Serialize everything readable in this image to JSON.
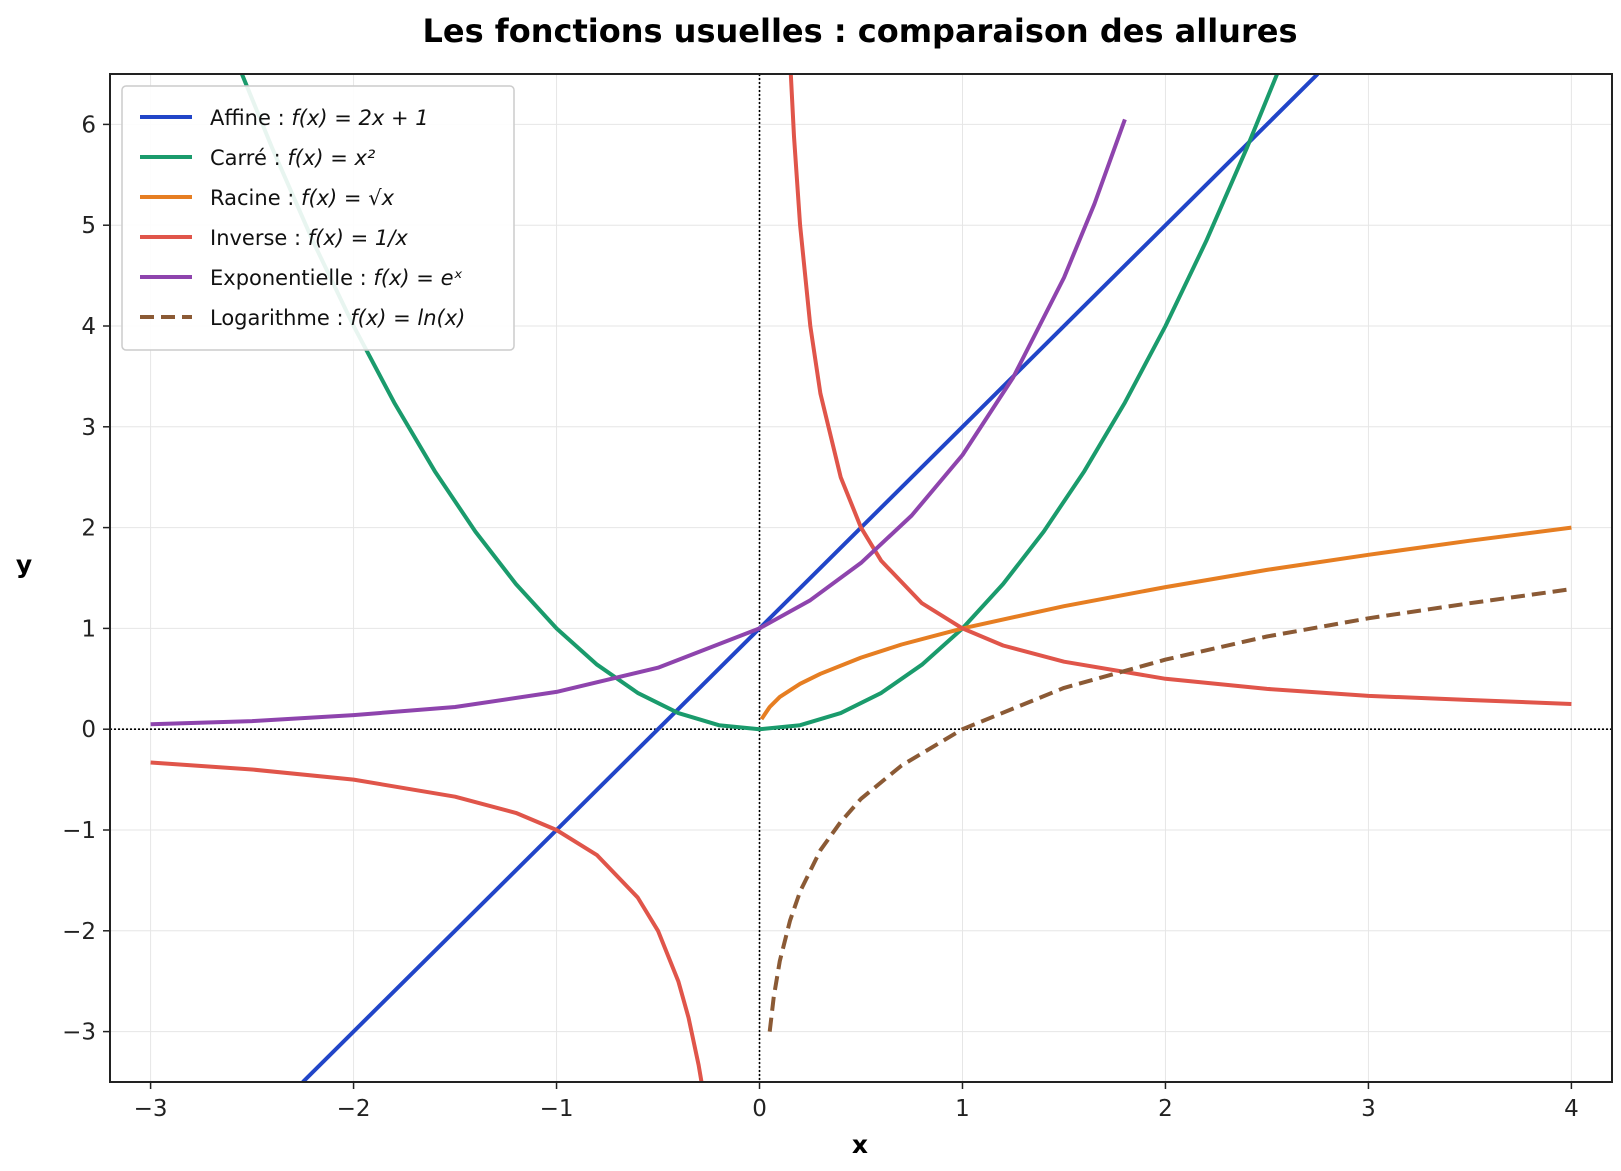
{
  "chart_data": {
    "type": "line",
    "title": "Les fonctions usuelles : comparaison des allures",
    "xlabel": "x",
    "ylabel": "y",
    "xlim": [
      -3.2,
      4.2
    ],
    "ylim": [
      -3.5,
      6.5
    ],
    "xticks": [
      "−3",
      "−2",
      "−1",
      "0",
      "1",
      "2",
      "3",
      "4"
    ],
    "yticks": [
      "−3",
      "−2",
      "−1",
      "0",
      "1",
      "2",
      "3",
      "4",
      "5",
      "6"
    ],
    "grid": true,
    "legend_position": "top-left",
    "series": [
      {
        "name": "Affine : f(x) = 2x + 1",
        "label_text": "Affine : ",
        "formula": "f(x) = 2x + 1",
        "color": "#2145c8",
        "dash": "solid",
        "x": [
          -2.25,
          2.75
        ],
        "y": [
          -3.5,
          6.5
        ]
      },
      {
        "name": "Carré : f(x) = x²",
        "label_text": "Carré : ",
        "formula": "f(x) = x²",
        "color": "#1a9b6c",
        "dash": "solid",
        "x": [
          -2.55,
          -2.4,
          -2.2,
          -2.0,
          -1.8,
          -1.6,
          -1.4,
          -1.2,
          -1.0,
          -0.8,
          -0.6,
          -0.4,
          -0.2,
          0.0,
          0.2,
          0.4,
          0.6,
          0.8,
          1.0,
          1.2,
          1.4,
          1.6,
          1.8,
          2.0,
          2.2,
          2.4,
          2.55
        ],
        "y": [
          6.5,
          5.76,
          4.84,
          4.0,
          3.24,
          2.56,
          1.96,
          1.44,
          1.0,
          0.64,
          0.36,
          0.16,
          0.04,
          0.0,
          0.04,
          0.16,
          0.36,
          0.64,
          1.0,
          1.44,
          1.96,
          2.56,
          3.24,
          4.0,
          4.84,
          5.76,
          6.5
        ]
      },
      {
        "name": "Racine : f(x) = √x",
        "label_text": "Racine : ",
        "formula": "f(x) = √x",
        "color": "#e67e22",
        "dash": "solid",
        "x": [
          0.01,
          0.05,
          0.1,
          0.2,
          0.3,
          0.5,
          0.7,
          1.0,
          1.5,
          2.0,
          2.5,
          3.0,
          3.5,
          4.0
        ],
        "y": [
          0.1,
          0.22,
          0.32,
          0.45,
          0.55,
          0.71,
          0.84,
          1.0,
          1.22,
          1.41,
          1.58,
          1.73,
          1.87,
          2.0
        ]
      },
      {
        "name": "Inverse : f(x) = 1/x",
        "label_text": "Inverse : ",
        "formula": "f(x) = 1/x",
        "color": "#e0554a",
        "dash": "solid",
        "segments": [
          {
            "x": [
              -3.0,
              -2.5,
              -2.0,
              -1.5,
              -1.2,
              -1.0,
              -0.8,
              -0.6,
              -0.5,
              -0.4,
              -0.35,
              -0.3,
              -0.286
            ],
            "y": [
              -0.33,
              -0.4,
              -0.5,
              -0.67,
              -0.83,
              -1.0,
              -1.25,
              -1.67,
              -2.0,
              -2.5,
              -2.86,
              -3.33,
              -3.5
            ]
          },
          {
            "x": [
              0.154,
              0.17,
              0.2,
              0.25,
              0.3,
              0.4,
              0.5,
              0.6,
              0.8,
              1.0,
              1.2,
              1.5,
              2.0,
              2.5,
              3.0,
              3.5,
              4.0
            ],
            "y": [
              6.5,
              5.88,
              5.0,
              4.0,
              3.33,
              2.5,
              2.0,
              1.67,
              1.25,
              1.0,
              0.83,
              0.67,
              0.5,
              0.4,
              0.33,
              0.29,
              0.25
            ]
          }
        ]
      },
      {
        "name": "Exponentielle : f(x) = eˣ",
        "label_text": "Exponentielle : ",
        "formula": "f(x) = eˣ",
        "color": "#8e44ad",
        "dash": "solid",
        "x": [
          -3.0,
          -2.5,
          -2.0,
          -1.5,
          -1.0,
          -0.5,
          0.0,
          0.25,
          0.5,
          0.75,
          1.0,
          1.25,
          1.5,
          1.65,
          1.8
        ],
        "y": [
          0.05,
          0.08,
          0.14,
          0.22,
          0.37,
          0.61,
          1.0,
          1.28,
          1.65,
          2.12,
          2.72,
          3.49,
          4.48,
          5.21,
          6.05
        ]
      },
      {
        "name": "Logarithme : f(x) = ln(x)",
        "label_text": "Logarithme : ",
        "formula": "f(x) = ln(x)",
        "color": "#8b5a35",
        "dash": "dashed",
        "x": [
          0.05,
          0.07,
          0.1,
          0.15,
          0.2,
          0.3,
          0.4,
          0.5,
          0.7,
          1.0,
          1.5,
          2.0,
          2.5,
          3.0,
          3.5,
          4.0
        ],
        "y": [
          -3.0,
          -2.66,
          -2.3,
          -1.9,
          -1.61,
          -1.2,
          -0.92,
          -0.69,
          -0.36,
          0.0,
          0.41,
          0.69,
          0.92,
          1.1,
          1.25,
          1.39
        ]
      }
    ]
  }
}
